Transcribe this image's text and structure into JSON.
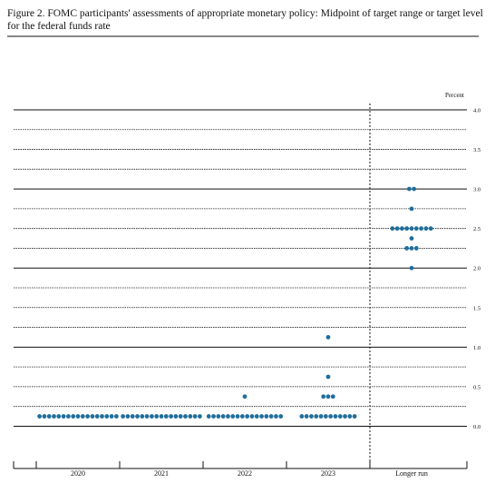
{
  "chart_data": {
    "type": "dot",
    "title": "Figure 2. FOMC participants' assessments of appropriate monetary policy: Midpoint of target range or target level for the federal funds rate",
    "y_axis_label": "Percent",
    "categories": [
      "2020",
      "2021",
      "2022",
      "2023",
      "Longer run"
    ],
    "color": "#1f6e9c",
    "dots": [
      {
        "x": "2020",
        "y": 0.125,
        "count": 17
      },
      {
        "x": "2021",
        "y": 0.125,
        "count": 17
      },
      {
        "x": "2022",
        "y": 0.125,
        "count": 16
      },
      {
        "x": "2022",
        "y": 0.375,
        "count": 1
      },
      {
        "x": "2023",
        "y": 0.125,
        "count": 12
      },
      {
        "x": "2023",
        "y": 0.375,
        "count": 3
      },
      {
        "x": "2023",
        "y": 0.625,
        "count": 1
      },
      {
        "x": "2023",
        "y": 1.125,
        "count": 1
      },
      {
        "x": "Longer run",
        "y": 2.0,
        "count": 1
      },
      {
        "x": "Longer run",
        "y": 2.25,
        "count": 3
      },
      {
        "x": "Longer run",
        "y": 2.375,
        "count": 1
      },
      {
        "x": "Longer run",
        "y": 2.5,
        "count": 9
      },
      {
        "x": "Longer run",
        "y": 2.75,
        "count": 1
      },
      {
        "x": "Longer run",
        "y": 3.0,
        "count": 2
      }
    ],
    "ylim": [
      -0.5,
      4.0
    ],
    "yticks": [
      {
        "value": 0,
        "label": "0.0"
      },
      0.5,
      {
        "value": 1,
        "label": "1.0"
      },
      1.5,
      {
        "value": 2,
        "label": "2.0"
      },
      2.5,
      {
        "value": 3,
        "label": "3.0"
      },
      3.5,
      {
        "value": 4,
        "label": "4.0"
      }
    ],
    "minor_gridlines": [
      0.25,
      0.75,
      1.25,
      1.75,
      2.25,
      2.75,
      3.25,
      3.75
    ]
  }
}
